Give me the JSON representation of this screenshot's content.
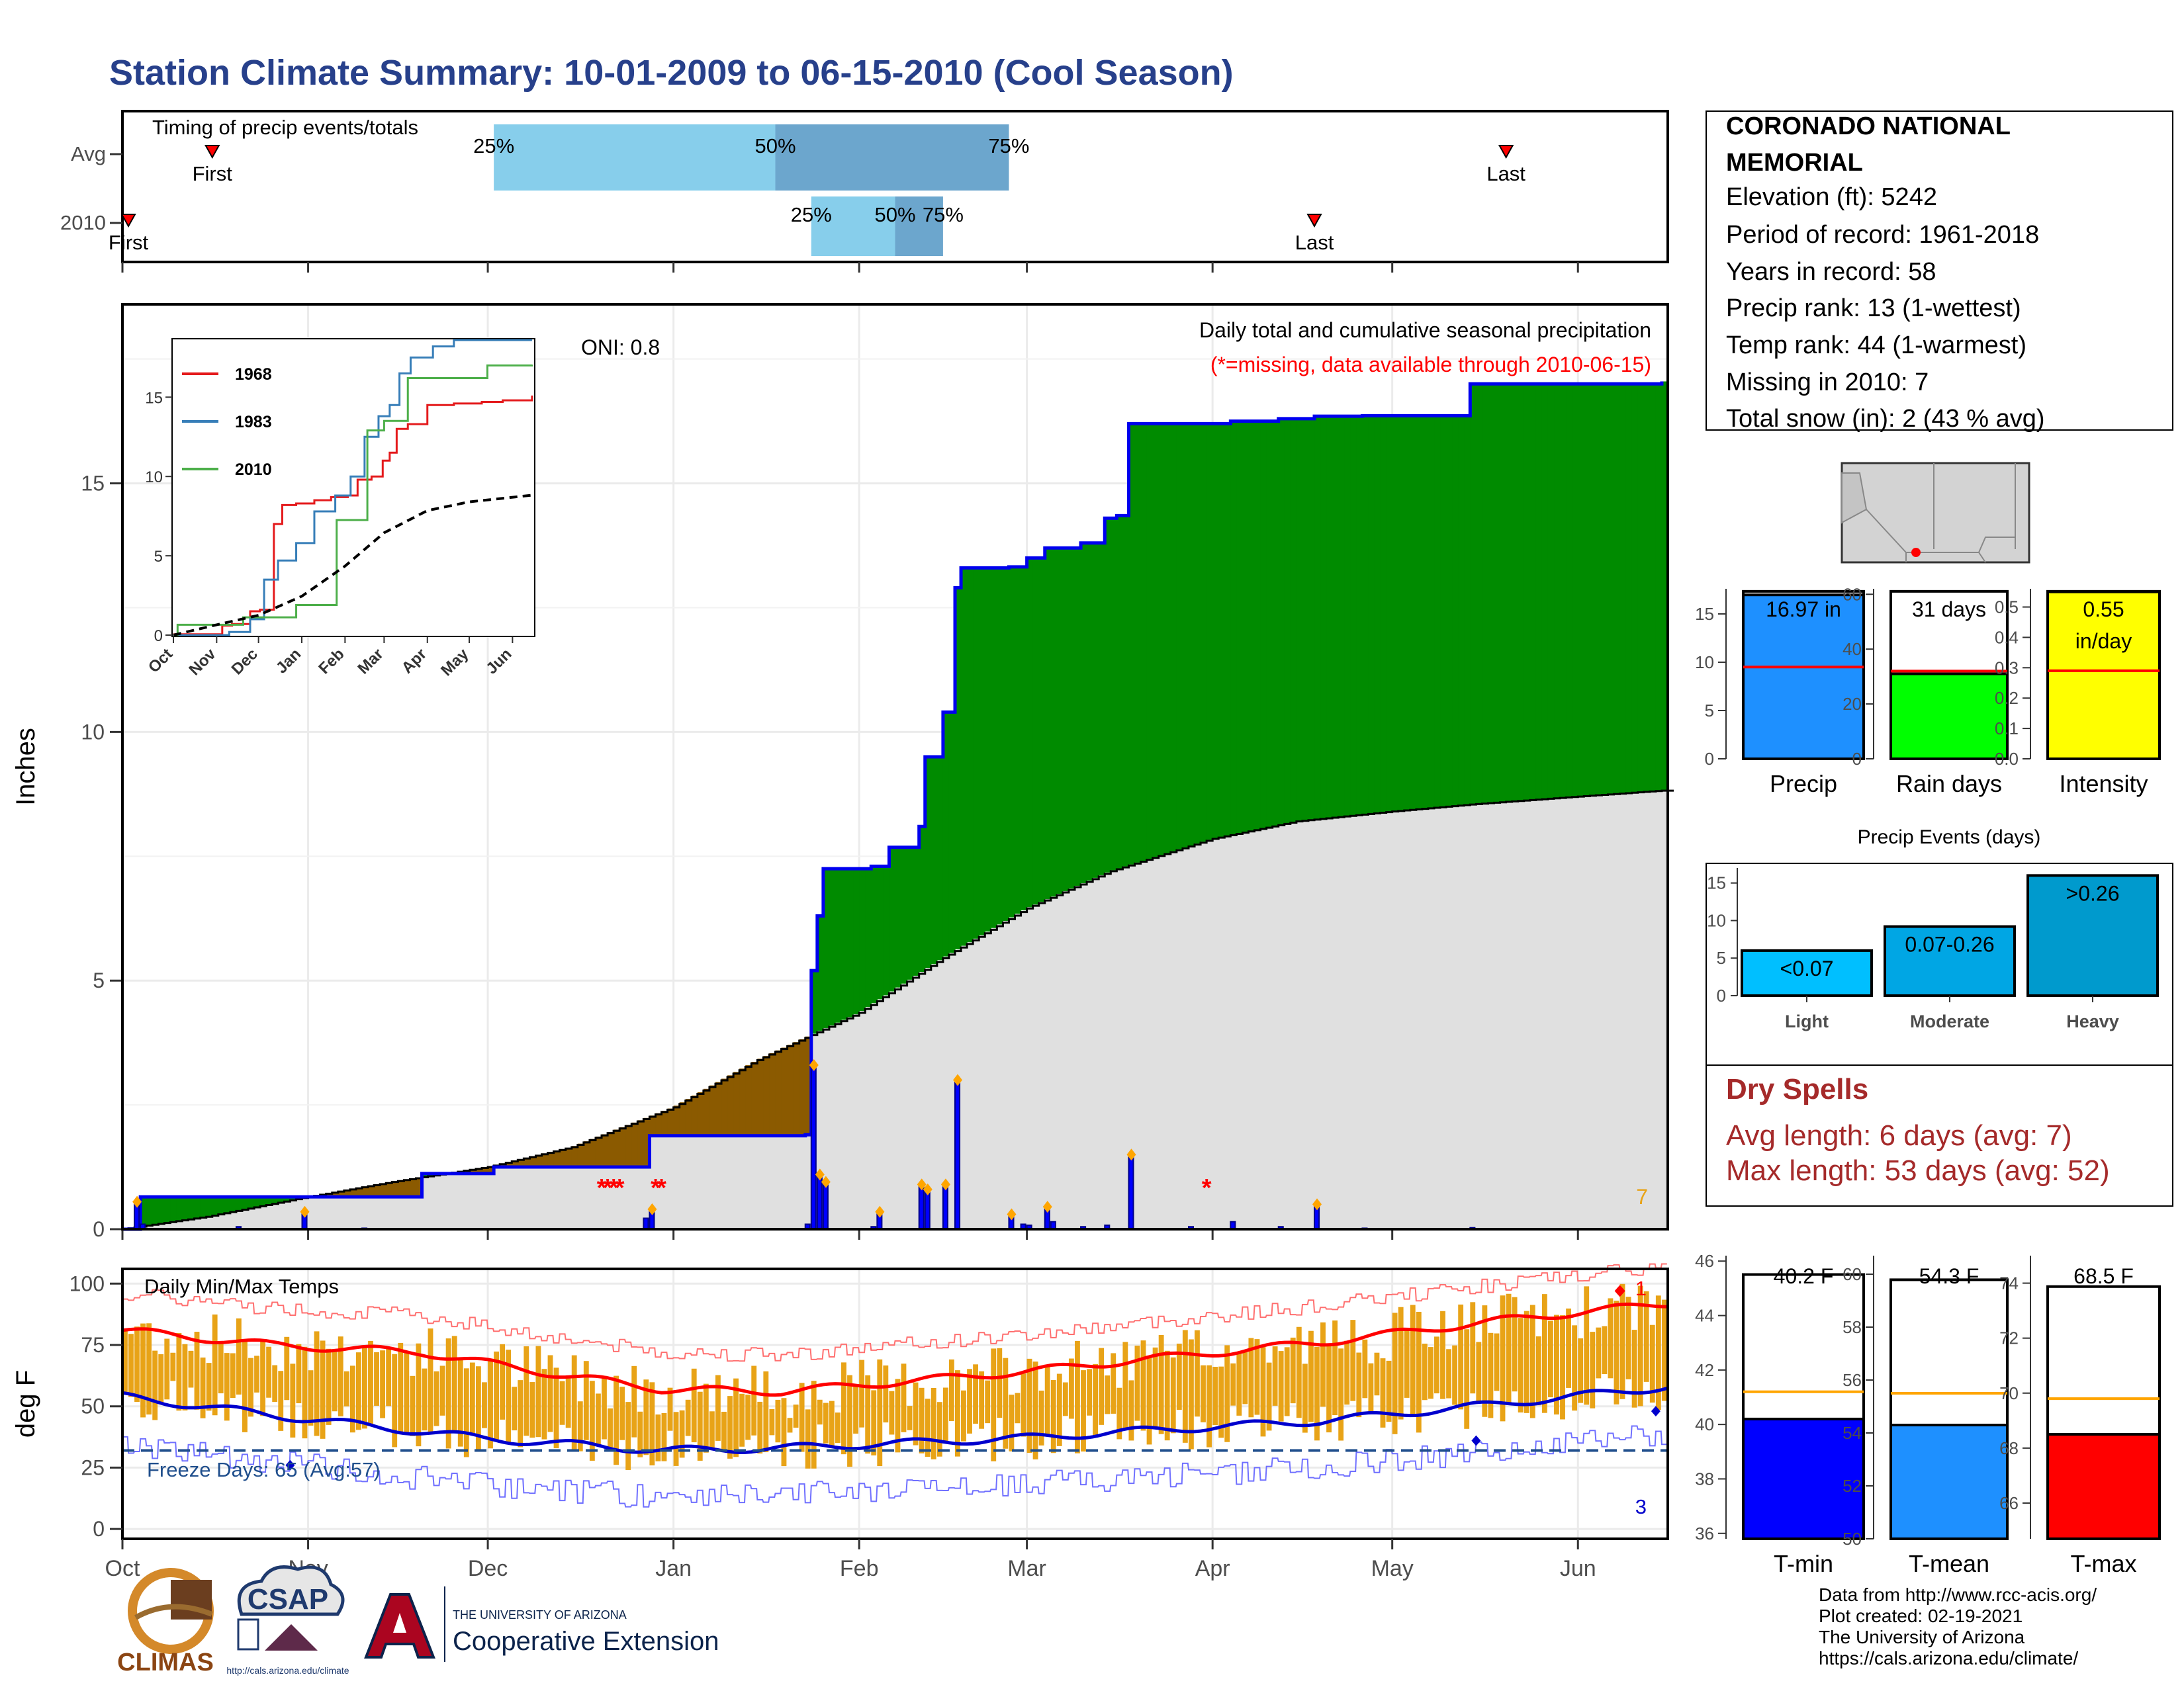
{
  "page": {
    "title": "Station Climate Summary: 10-01-2009 to 06-15-2010 (Cool Season)"
  },
  "station": {
    "name_line1": "CORONADO NATIONAL",
    "name_line2": "MEMORIAL",
    "elevation": "Elevation (ft): 5242",
    "period": "Period of record: 1961-2018",
    "years": "Years in record: 58",
    "precip_rank": "Precip rank: 13 (1-wettest)",
    "temp_rank": "Temp rank: 44 (1-warmest)",
    "missing": "Missing in 2010: 7",
    "snow": "Total snow (in): 2 (43 % avg)"
  },
  "dry_spells": {
    "title": "Dry Spells",
    "avg": "Avg length: 6 days (avg: 7)",
    "max": "Max length: 53 days (avg: 52)"
  },
  "footer": {
    "line1": "Data from http://www.rcc-acis.org/",
    "line2": "Plot created: 02-19-2021",
    "line3": "The University of Arizona",
    "line4": "https://cals.arizona.edu/climate/"
  },
  "logos": {
    "climas": "CLIMAS",
    "csap": "CSAP",
    "csap_url": "http://cals.arizona.edu/climate",
    "ua_small": "THE UNIVERSITY OF ARIZONA",
    "ua_big": "Cooperative Extension"
  },
  "colors": {
    "green": "#008b00",
    "brown": "#8b5a00",
    "grey": "#e0e0e0",
    "blue": "#0000ee",
    "orange": "#e8a317",
    "red": "#ff0000",
    "title": "#27408b",
    "dryred": "#a52a2a"
  },
  "chart_data": [
    {
      "id": "timing",
      "type": "bar",
      "title": "Timing of precip events/totals",
      "rows": [
        {
          "label": "Avg",
          "first": "2009-10-16",
          "last": "2010-05-20",
          "p25": "2009-12-02",
          "p50": "2010-01-18",
          "p75": "2010-02-26",
          "labels": {
            "first": "First",
            "last": "Last",
            "p25": "25%",
            "p50": "50%",
            "p75": "75%"
          }
        },
        {
          "label": "2010",
          "first": "2009-10-02",
          "last": "2010-04-18",
          "p25": "2010-01-24",
          "p50": "2010-02-07",
          "p75": "2010-02-15",
          "labels": {
            "first": "First",
            "last": "Last",
            "p25": "25%",
            "p50": "50%",
            "p75": "75%"
          }
        }
      ]
    },
    {
      "id": "precip",
      "type": "area",
      "title": "Daily total and cumulative seasonal precipitation",
      "subtitle": "(*=missing, data available through 2010-06-15)",
      "annotation": "ONI: 0.8",
      "missing_count_label": "7",
      "ylabel": "Inches",
      "ylim": [
        0,
        18.6
      ],
      "yticks": [
        0,
        5,
        10,
        15
      ],
      "x_start": "2009-10-01",
      "x_end": "2010-06-15",
      "cumulative_2010": [
        [
          "2009-10-01",
          0.0
        ],
        [
          "2009-10-04",
          0.65
        ],
        [
          "2009-11-01",
          0.65
        ],
        [
          "2009-11-20",
          1.12
        ],
        [
          "2009-12-02",
          1.25
        ],
        [
          "2009-12-28",
          1.88
        ],
        [
          "2010-01-23",
          1.9
        ],
        [
          "2010-01-24",
          5.2
        ],
        [
          "2010-01-25",
          6.3
        ],
        [
          "2010-01-26",
          7.25
        ],
        [
          "2010-02-01",
          7.25
        ],
        [
          "2010-02-03",
          7.3
        ],
        [
          "2010-02-06",
          7.68
        ],
        [
          "2010-02-11",
          8.1
        ],
        [
          "2010-02-12",
          9.5
        ],
        [
          "2010-02-15",
          10.4
        ],
        [
          "2010-02-17",
          12.9
        ],
        [
          "2010-02-18",
          13.3
        ],
        [
          "2010-02-26",
          13.32
        ],
        [
          "2010-03-01",
          13.5
        ],
        [
          "2010-03-04",
          13.7
        ],
        [
          "2010-03-10",
          13.8
        ],
        [
          "2010-03-14",
          14.3
        ],
        [
          "2010-03-16",
          14.35
        ],
        [
          "2010-03-18",
          16.2
        ],
        [
          "2010-04-04",
          16.25
        ],
        [
          "2010-04-12",
          16.3
        ],
        [
          "2010-04-18",
          16.35
        ],
        [
          "2010-04-26",
          16.36
        ],
        [
          "2010-04-28",
          16.36
        ],
        [
          "2010-05-12",
          16.36
        ],
        [
          "2010-05-14",
          17.0
        ],
        [
          "2010-06-15",
          17.05
        ]
      ],
      "average_cumulative": [
        [
          "2009-10-01",
          0.0
        ],
        [
          "2009-10-15",
          0.25
        ],
        [
          "2009-11-01",
          0.65
        ],
        [
          "2009-11-15",
          0.95
        ],
        [
          "2009-12-01",
          1.25
        ],
        [
          "2009-12-15",
          1.65
        ],
        [
          "2010-01-01",
          2.45
        ],
        [
          "2010-01-15",
          3.4
        ],
        [
          "2010-02-01",
          4.35
        ],
        [
          "2010-02-15",
          5.45
        ],
        [
          "2010-03-01",
          6.45
        ],
        [
          "2010-03-15",
          7.2
        ],
        [
          "2010-04-01",
          7.85
        ],
        [
          "2010-04-15",
          8.2
        ],
        [
          "2010-05-01",
          8.4
        ],
        [
          "2010-05-15",
          8.55
        ],
        [
          "2010-06-01",
          8.7
        ],
        [
          "2010-06-15",
          8.82
        ]
      ],
      "daily_events": [
        [
          "2009-10-03",
          0.55
        ],
        [
          "2009-10-04",
          0.1
        ],
        [
          "2009-10-20",
          0.05
        ],
        [
          "2009-10-31",
          0.35
        ],
        [
          "2009-11-10",
          0.02
        ],
        [
          "2009-12-27",
          0.22
        ],
        [
          "2009-12-28",
          0.4
        ],
        [
          "2010-01-23",
          0.1
        ],
        [
          "2010-01-24",
          3.3
        ],
        [
          "2010-01-25",
          1.1
        ],
        [
          "2010-01-26",
          0.95
        ],
        [
          "2010-02-03",
          0.05
        ],
        [
          "2010-02-04",
          0.35
        ],
        [
          "2010-02-11",
          0.9
        ],
        [
          "2010-02-12",
          0.8
        ],
        [
          "2010-02-15",
          0.9
        ],
        [
          "2010-02-17",
          3.0
        ],
        [
          "2010-02-26",
          0.3
        ],
        [
          "2010-02-28",
          0.1
        ],
        [
          "2010-03-01",
          0.08
        ],
        [
          "2010-03-04",
          0.45
        ],
        [
          "2010-03-05",
          0.15
        ],
        [
          "2010-03-10",
          0.05
        ],
        [
          "2010-03-14",
          0.08
        ],
        [
          "2010-03-18",
          1.5
        ],
        [
          "2010-03-28",
          0.05
        ],
        [
          "2010-04-04",
          0.15
        ],
        [
          "2010-04-12",
          0.05
        ],
        [
          "2010-04-18",
          0.5
        ],
        [
          "2010-04-26",
          0.02
        ],
        [
          "2010-05-14",
          0.03
        ]
      ],
      "missing_dates": [
        "2009-12-20",
        "2009-12-21",
        "2009-12-22",
        "2009-12-23",
        "2009-12-29",
        "2009-12-30",
        "2010-03-31"
      ],
      "inset": {
        "type": "line",
        "ylim": [
          0,
          18.6
        ],
        "yticks": [
          0,
          5,
          10,
          15
        ],
        "xtick_labels": [
          "Oct",
          "Nov",
          "Dec",
          "Jan",
          "Feb",
          "Mar",
          "Apr",
          "May",
          "Jun"
        ],
        "series": [
          {
            "name": "1968",
            "color": "#e41a1c",
            "values": [
              [
                "2009-10-01",
                0.05
              ],
              [
                "2009-11-05",
                0.6
              ],
              [
                "2009-11-12",
                0.7
              ],
              [
                "2009-11-25",
                1.5
              ],
              [
                "2009-12-02",
                1.6
              ],
              [
                "2009-12-12",
                7.0
              ],
              [
                "2009-12-18",
                8.2
              ],
              [
                "2009-12-28",
                8.3
              ],
              [
                "2010-01-10",
                8.5
              ],
              [
                "2010-01-22",
                8.7
              ],
              [
                "2010-02-03",
                8.8
              ],
              [
                "2010-02-10",
                9.8
              ],
              [
                "2010-02-20",
                10.0
              ],
              [
                "2010-02-28",
                11.0
              ],
              [
                "2010-03-05",
                11.5
              ],
              [
                "2010-03-10",
                13.0
              ],
              [
                "2010-03-18",
                13.3
              ],
              [
                "2010-04-01",
                14.5
              ],
              [
                "2010-04-20",
                14.6
              ],
              [
                "2010-05-10",
                14.7
              ],
              [
                "2010-05-25",
                14.8
              ],
              [
                "2010-06-15",
                15.1
              ]
            ]
          },
          {
            "name": "1983",
            "color": "#377eb8",
            "values": [
              [
                "2009-10-01",
                0.0
              ],
              [
                "2009-11-10",
                0.2
              ],
              [
                "2009-11-25",
                1.0
              ],
              [
                "2009-12-05",
                3.5
              ],
              [
                "2009-12-15",
                4.7
              ],
              [
                "2009-12-28",
                5.8
              ],
              [
                "2010-01-10",
                7.8
              ],
              [
                "2010-01-25",
                8.8
              ],
              [
                "2010-02-05",
                10.0
              ],
              [
                "2010-02-15",
                12.5
              ],
              [
                "2010-02-25",
                13.8
              ],
              [
                "2010-03-05",
                14.5
              ],
              [
                "2010-03-12",
                16.5
              ],
              [
                "2010-03-20",
                17.5
              ],
              [
                "2010-04-05",
                18.2
              ],
              [
                "2010-04-20",
                18.6
              ],
              [
                "2010-06-15",
                18.6
              ]
            ]
          },
          {
            "name": "2010",
            "color": "#4daf4a",
            "values": [
              [
                "2009-10-01",
                0.0
              ],
              [
                "2009-10-04",
                0.65
              ],
              [
                "2009-11-20",
                1.12
              ],
              [
                "2009-12-28",
                1.9
              ],
              [
                "2010-01-23",
                1.9
              ],
              [
                "2010-01-26",
                7.25
              ],
              [
                "2010-02-17",
                12.9
              ],
              [
                "2010-03-01",
                13.5
              ],
              [
                "2010-03-18",
                16.2
              ],
              [
                "2010-05-14",
                17.0
              ],
              [
                "2010-06-15",
                17.05
              ]
            ]
          },
          {
            "name": "",
            "color": "#000000",
            "dashed": true,
            "values": [
              [
                "2009-10-01",
                0.0
              ],
              [
                "2009-11-01",
                0.65
              ],
              [
                "2009-12-01",
                1.25
              ],
              [
                "2010-01-01",
                2.45
              ],
              [
                "2010-02-01",
                4.35
              ],
              [
                "2010-03-01",
                6.45
              ],
              [
                "2010-04-01",
                7.85
              ],
              [
                "2010-05-01",
                8.4
              ],
              [
                "2010-06-15",
                8.82
              ]
            ]
          }
        ]
      }
    },
    {
      "id": "temps",
      "type": "bar",
      "title": "Daily Min/Max Temps",
      "ylabel": "deg F",
      "ylim": [
        -4,
        106
      ],
      "yticks": [
        0,
        25,
        50,
        75,
        100
      ],
      "freeze_label": "Freeze Days: 65 (Avg:57)",
      "freeze_line": 32,
      "record_high_count": "1",
      "record_low_count": "3",
      "x_tick_labels": [
        "Oct",
        "Nov",
        "Dec",
        "Jan",
        "Feb",
        "Mar",
        "Apr",
        "May",
        "Jun"
      ],
      "avg_max_keypoints": [
        [
          0,
          81
        ],
        [
          25,
          75
        ],
        [
          50,
          72
        ],
        [
          70,
          64
        ],
        [
          90,
          57
        ],
        [
          110,
          56
        ],
        [
          130,
          60
        ],
        [
          150,
          64
        ],
        [
          170,
          69
        ],
        [
          200,
          76
        ],
        [
          230,
          85
        ],
        [
          258,
          92
        ]
      ],
      "avg_min_keypoints": [
        [
          0,
          54
        ],
        [
          30,
          45
        ],
        [
          60,
          37
        ],
        [
          90,
          32
        ],
        [
          110,
          33
        ],
        [
          130,
          35
        ],
        [
          150,
          37
        ],
        [
          170,
          40
        ],
        [
          200,
          44
        ],
        [
          230,
          51
        ],
        [
          258,
          58
        ]
      ],
      "daily_range_note": "orange bars: observed daily min to max"
    },
    {
      "id": "summary_bars",
      "type": "bar",
      "panels": [
        {
          "name": "Precip",
          "value": 16.97,
          "avg": 9.5,
          "label": "16.97 in",
          "ylim": [
            0,
            17.6
          ],
          "yticks": [
            0,
            5,
            10,
            15
          ],
          "color": "#1e90ff"
        },
        {
          "name": "Rain days",
          "value": 31,
          "avg": 32,
          "label": "31 days",
          "ylim": [
            0,
            62
          ],
          "yticks": [
            0,
            20,
            40,
            60
          ],
          "color": "#00ff00"
        },
        {
          "name": "Intensity",
          "value": 0.55,
          "avg": 0.29,
          "label": "0.55 in/day",
          "label_parts": [
            "0.55",
            "in/day"
          ],
          "ylim": [
            0,
            0.56
          ],
          "yticks": [
            "0.0",
            "0.1",
            "0.2",
            "0.3",
            "0.4",
            "0.5"
          ],
          "color": "#ffff00"
        }
      ]
    },
    {
      "id": "events",
      "type": "bar",
      "title": "Precip Events (days)",
      "categories": [
        "Light",
        "Moderate",
        "Heavy"
      ],
      "bar_labels": [
        "<0.07",
        "0.07-0.26",
        ">0.26"
      ],
      "values": [
        6,
        9.2,
        16
      ],
      "ylim": [
        0,
        17
      ],
      "yticks": [
        0,
        5,
        10,
        15
      ],
      "colors": [
        "#00bfff",
        "#00a6e4",
        "#009acd"
      ]
    },
    {
      "id": "temp_bars",
      "type": "bar",
      "panels": [
        {
          "name": "T-min",
          "value": 40.2,
          "avg": 41.2,
          "label": "40.2 F",
          "ylim": [
            35.8,
            46.2
          ],
          "yticks": [
            36,
            38,
            40,
            42,
            44,
            46
          ],
          "color": "#0000ff"
        },
        {
          "name": "T-mean",
          "value": 54.3,
          "avg": 55.5,
          "label": "54.3 F",
          "ylim": [
            50,
            60.7
          ],
          "yticks": [
            50,
            52,
            54,
            56,
            58,
            60
          ],
          "color": "#1e90ff"
        },
        {
          "name": "T-max",
          "value": 68.5,
          "avg": 69.8,
          "label": "68.5 F",
          "ylim": [
            64.7,
            75
          ],
          "yticks": [
            66,
            68,
            70,
            72,
            74
          ],
          "color": "#ff0000"
        }
      ]
    }
  ]
}
